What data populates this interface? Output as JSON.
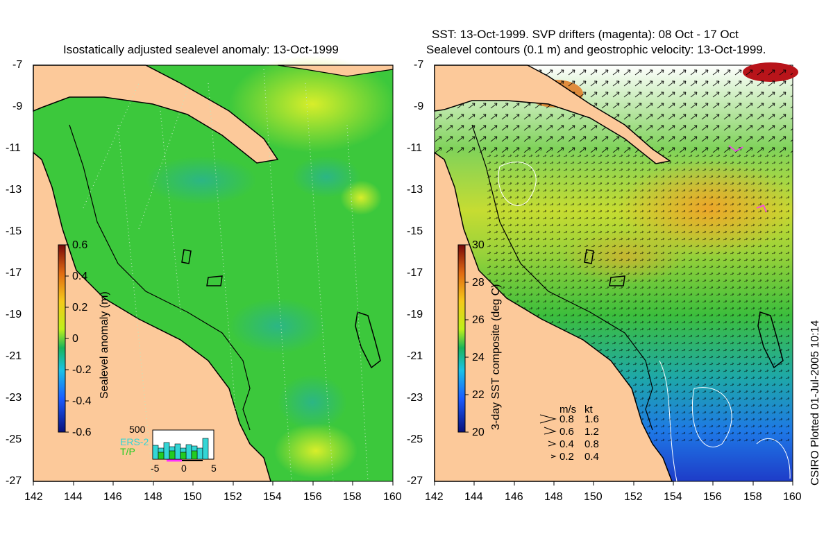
{
  "left_panel": {
    "title": "Isostatically adjusted sealevel anomaly: 13-Oct-1999",
    "colorbar_label": "Sealevel anomaly (m)",
    "colorbar_ticks": [
      "0.6",
      "0.4",
      "0.2",
      "0",
      "-0.2",
      "-0.4",
      "-0.6"
    ],
    "hist_max": "500",
    "hist_ticks": [
      "-5",
      "0",
      "5"
    ],
    "sat1": "ERS-2",
    "sat2": "T/P",
    "sat1_color": "#33d6d6",
    "sat2_color": "#22cc22"
  },
  "right_panel": {
    "title_line1": "SST: 13-Oct-1999. SVP drifters (magenta): 08 Oct - 17 Oct",
    "title_line2": "Sealevel contours (0.1 m) and geostrophic velocity: 13-Oct-1999.",
    "colorbar_label": "3-day SST composite (deg C)",
    "colorbar_ticks": [
      "30",
      "28",
      "26",
      "24",
      "22",
      "20"
    ],
    "legend_header_ms": "m/s",
    "legend_header_kt": "kt",
    "legend_rows": [
      {
        "ms": "0.8",
        "kt": "1.6"
      },
      {
        "ms": "0.6",
        "kt": "1.2"
      },
      {
        "ms": "0.4",
        "kt": "0.8"
      },
      {
        "ms": "0.2",
        "kt": "0.4"
      }
    ]
  },
  "axes": {
    "x_ticks": [
      "142",
      "144",
      "146",
      "148",
      "150",
      "152",
      "154",
      "156",
      "158",
      "160"
    ],
    "y_ticks": [
      "-7",
      "-9",
      "-11",
      "-13",
      "-15",
      "-17",
      "-19",
      "-21",
      "-23",
      "-25",
      "-27"
    ]
  },
  "credit": "CSIRO Plotted 01-Jul-2005 10:14",
  "colors": {
    "land": "#fcc99a",
    "ocean_green": "#32c832",
    "sst_warm": "#e8a020",
    "sst_cool": "#1e3cc8"
  }
}
